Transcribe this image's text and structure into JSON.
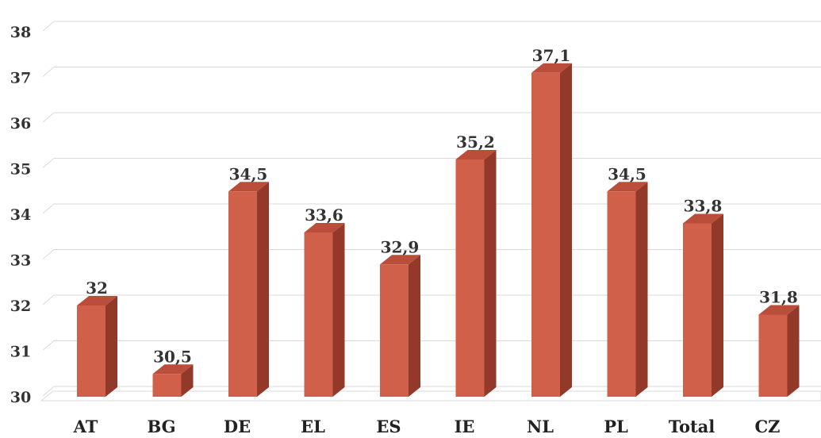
{
  "chart_data": {
    "type": "bar",
    "categories": [
      "AT",
      "BG",
      "DE",
      "EL",
      "ES",
      "IE",
      "NL",
      "PL",
      "Total",
      "CZ"
    ],
    "values": [
      32,
      30.5,
      34.5,
      33.6,
      32.9,
      35.2,
      37.1,
      34.5,
      33.8,
      31.8
    ],
    "data_labels": [
      "32",
      "30,5",
      "34,5",
      "33,6",
      "32,9",
      "35,2",
      "37,1",
      "34,5",
      "33,8",
      "31,8"
    ],
    "ylim": [
      30,
      38
    ],
    "yticks": [
      "30",
      "31",
      "32",
      "33",
      "34",
      "35",
      "36",
      "37",
      "38"
    ],
    "grid": true,
    "title": "",
    "xlabel": "",
    "ylabel": "",
    "style": "3d-bar",
    "colors": {
      "bar_front": "#D0604A",
      "bar_side": "#93392A",
      "bar_top": "#BA4E3A",
      "grid": "#D9D9D9",
      "floor": "#D9D9D9"
    }
  }
}
